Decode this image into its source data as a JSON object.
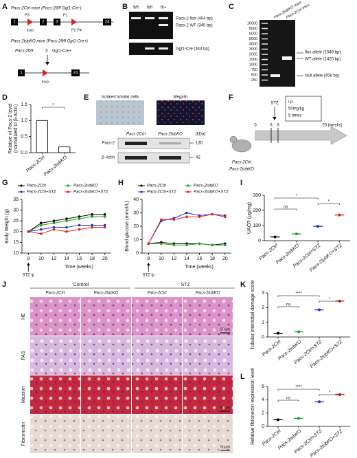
{
  "panel_labels": [
    "A",
    "B",
    "C",
    "D",
    "E",
    "F",
    "G",
    "H",
    "I",
    "J",
    "K",
    "L"
  ],
  "panel_a": {
    "ctrl_mice": "Pacs-2Ctrl mice (Pacs-2fl/fl Ggt1-Cre-)",
    "ko_mice": "Pacs-2tubKO mice (Pacs-2fl/fl Ggt1-Cre+)",
    "cross_left": "Pacs-2fl/fl",
    "cross": "X",
    "cross_right": "Ggt1-Cre+",
    "loxp": "loxp",
    "primers": [
      "P3",
      "P1",
      "P2 P4"
    ],
    "exons": [
      "1",
      "2",
      "3",
      "24"
    ]
  },
  "panel_b": {
    "lanes": [
      "fl/fl",
      "fl/fl",
      "fl/+"
    ],
    "bands": [
      "Pacs-2 flox (404 bp)",
      "Pacs-2 WT (345 bp)",
      "Ggt1-Cre (343 bp)"
    ]
  },
  "panel_c": {
    "ladder": [
      10000,
      8000,
      6000,
      5000,
      4000,
      3000,
      2000,
      1500,
      1000,
      750,
      500,
      250
    ],
    "lanes": [
      "Pacs-2tubKO mice",
      "Pacs-2Ctrl mice"
    ],
    "bands": [
      "flox allele (1549 bp)",
      "WT allele (1420 bp)",
      "Null allele (458 bp)"
    ]
  },
  "panel_e": {
    "images": [
      "Isolated tubular cells",
      "Megalin"
    ],
    "lanes": [
      "Pacs-2Ctrl",
      "Pacs-2tubKO"
    ],
    "unit": "(kDa)",
    "proteins": [
      "Pacs-2",
      "β-Actin"
    ],
    "sizes": [
      "130",
      "42"
    ]
  },
  "panel_f": {
    "treatment": "STZ",
    "regimen": [
      "i.p.",
      "50mg/kg",
      "5 times"
    ],
    "timeline": [
      "0",
      "6",
      "8",
      "20 (weeks)"
    ],
    "groups": [
      "Pacs-2Ctrl",
      "Pacs-2tubKO"
    ]
  },
  "panel_j": {
    "groups": [
      "Control",
      "STZ"
    ],
    "columns": [
      "Pacs-2Ctrl",
      "Pacs-2tubKO",
      "Pacs-2Ctrl",
      "Pacs-2tubKO"
    ],
    "rows": [
      "HE",
      "PAS",
      "Masson",
      "Fibronectin"
    ],
    "scale_bar": "50μm"
  },
  "chart_data": [
    {
      "type": "bar",
      "ylabel": [
        "Relative of Pacs-2 level",
        "(normalized to β-Actin)"
      ],
      "categories": [
        "Pacs-2Ctrl",
        "Pacs-2tubKO"
      ],
      "values": [
        1.0,
        0.18
      ],
      "color": "#000000",
      "ylim": [
        0,
        1.5
      ],
      "yticks": [
        {
          "value": 0,
          "label": "0.0"
        },
        0.5,
        {
          "value": 1,
          "label": "1.0"
        },
        1.5
      ],
      "comparisons": [
        {
          "pair": [
            0,
            1
          ],
          "label": "*"
        }
      ]
    },
    {
      "type": "line",
      "ylabel": "Body Weight (g)",
      "xlabel": "Time (weeks)",
      "annotation": {
        "text": "STZ ip",
        "x": 8
      },
      "legend": true,
      "x": [
        8,
        10,
        12,
        14,
        16,
        18,
        20
      ],
      "xlim": [
        7,
        21
      ],
      "xticks": [
        8,
        10,
        12,
        14,
        16,
        18,
        20
      ],
      "ylim": [
        10,
        35
      ],
      "yticks": [
        10,
        15,
        20,
        25,
        30,
        35
      ],
      "series": [
        {
          "name": "Pacs-2Ctrl",
          "color": "#000000",
          "values": [
            20,
            24,
            25,
            26,
            27,
            28,
            28
          ]
        },
        {
          "name": "Pacs-2tubKO",
          "color": "#20a020",
          "values": [
            20,
            23,
            24,
            25,
            26,
            27,
            27
          ]
        },
        {
          "name": "Pacs-2Ctrl+STZ",
          "color": "#2030d0",
          "values": [
            20,
            21,
            22,
            22,
            23,
            23,
            23
          ]
        },
        {
          "name": "Pacs-2tubKO+STZ",
          "color": "#e02020",
          "values": [
            20,
            19,
            21,
            20,
            21,
            22,
            22
          ]
        }
      ]
    },
    {
      "type": "line",
      "ylabel": "Blood glucose (mmol/L)",
      "xlabel": "Time (weeks)",
      "annotation": {
        "text": "STZ ip",
        "x": 8
      },
      "legend": true,
      "x": [
        8,
        10,
        12,
        14,
        16,
        18,
        20
      ],
      "xlim": [
        7,
        21
      ],
      "xticks": [
        8,
        10,
        12,
        14,
        16,
        18,
        20
      ],
      "ylim": [
        0,
        40
      ],
      "yticks": [
        0,
        10,
        20,
        30,
        40
      ],
      "series": [
        {
          "name": "Pacs-2Ctrl",
          "color": "#000000",
          "values": [
            7,
            8,
            7,
            7,
            7,
            6,
            7
          ]
        },
        {
          "name": "Pacs-2tubKO",
          "color": "#20a020",
          "values": [
            7,
            7,
            6,
            6,
            7,
            6,
            6
          ]
        },
        {
          "name": "Pacs-2Ctrl+STZ",
          "color": "#2030d0",
          "values": [
            7,
            24,
            26,
            30,
            28,
            29,
            28
          ]
        },
        {
          "name": "Pacs-2tubKO+STZ",
          "color": "#e02020",
          "values": [
            7,
            25,
            25,
            27,
            27,
            29,
            27
          ]
        }
      ]
    },
    {
      "type": "dot",
      "ylabel": "UACR (μg/mg)",
      "categories": [
        "Pacs-2Ctrl",
        "Pacs-2tubKO",
        "Pacs-2Ctrl+STZ",
        "Pacs-2tubKO+STZ"
      ],
      "values": [
        25,
        45,
        95,
        170
      ],
      "colors": [
        "#000000",
        "#20a020",
        "#2030d0",
        "#e02020"
      ],
      "ylim": [
        0,
        300
      ],
      "yticks": [
        0,
        100,
        200,
        300
      ],
      "comparisons": [
        {
          "pair": [
            0,
            2
          ],
          "label": "*"
        },
        {
          "pair": [
            2,
            3
          ],
          "label": "*"
        },
        {
          "pair": [
            0,
            1
          ],
          "label": "ns"
        }
      ]
    },
    {
      "type": "dot",
      "ylabel": "Tubular interstitial damage score",
      "categories": [
        "Pacs-2Ctrl",
        "Pacs-2tubKO",
        "Pacs-2Ctrl+STZ",
        "Pacs-2tubKO+STZ"
      ],
      "values": [
        0.25,
        0.35,
        1.85,
        2.45
      ],
      "colors": [
        "#000000",
        "#20a020",
        "#2030d0",
        "#e02020"
      ],
      "ylim": [
        0,
        3
      ],
      "yticks": [
        0,
        1,
        2,
        3
      ],
      "comparisons": [
        {
          "pair": [
            0,
            2
          ],
          "label": "****"
        },
        {
          "pair": [
            2,
            3
          ],
          "label": "*"
        },
        {
          "pair": [
            0,
            1
          ],
          "label": "ns"
        }
      ]
    },
    {
      "type": "dot",
      "ylabel": "Relative fibronectin expression level",
      "categories": [
        "Pacs-2Ctrl",
        "Pacs-2tubKO",
        "Pacs-2Ctrl+STZ",
        "Pacs-2tubKO+STZ"
      ],
      "values": [
        1.0,
        1.2,
        3.7,
        4.8
      ],
      "colors": [
        "#000000",
        "#20a020",
        "#2030d0",
        "#e02020"
      ],
      "ylim": [
        0,
        6
      ],
      "yticks": [
        0,
        2,
        4,
        6
      ],
      "comparisons": [
        {
          "pair": [
            0,
            2
          ],
          "label": "****"
        },
        {
          "pair": [
            2,
            3
          ],
          "label": "*"
        },
        {
          "pair": [
            0,
            1
          ],
          "label": "ns"
        }
      ]
    }
  ]
}
